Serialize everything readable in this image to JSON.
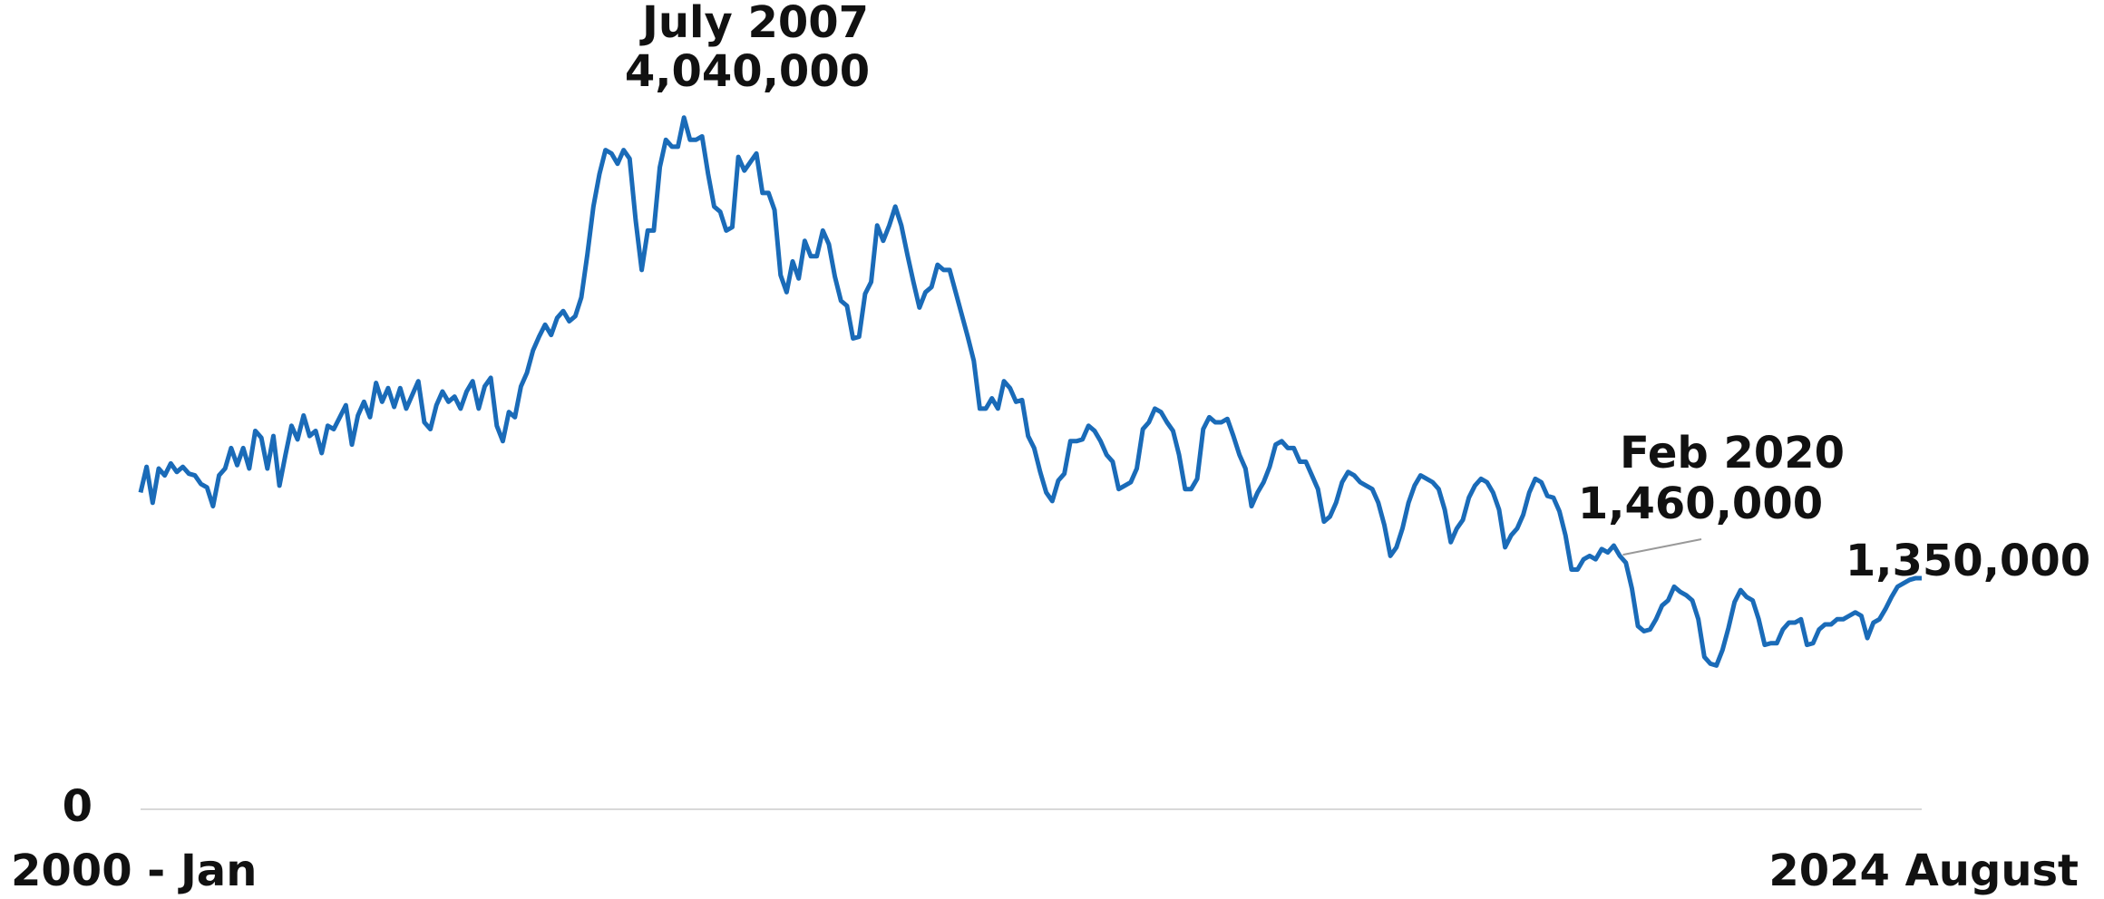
{
  "chart_data": {
    "type": "line",
    "categories": [
      "2000 - Jan",
      null,
      null,
      null,
      null,
      null,
      null,
      null,
      null,
      null,
      null,
      null,
      null,
      null,
      null,
      null,
      null,
      null,
      null,
      null,
      null,
      null,
      null,
      null,
      null,
      null,
      null,
      null,
      null,
      null,
      null,
      null,
      null,
      null,
      null,
      null,
      null,
      null,
      null,
      null,
      null,
      null,
      null,
      null,
      null,
      null,
      null,
      null,
      null,
      null,
      null,
      null,
      null,
      null,
      null,
      null,
      null,
      null,
      null,
      null,
      null,
      null,
      null,
      null,
      null,
      null,
      null,
      null,
      null,
      null,
      null,
      null,
      null,
      null,
      null,
      null,
      null,
      null,
      null,
      null,
      null,
      null,
      null,
      null,
      null,
      null,
      null,
      null,
      null,
      null,
      null,
      null,
      null,
      null,
      null,
      null,
      null,
      null,
      null,
      null,
      null,
      null,
      null,
      null,
      null,
      null,
      null,
      null,
      null,
      null,
      null,
      null,
      null,
      null,
      null,
      null,
      null,
      null,
      null,
      null,
      null,
      null,
      null,
      null,
      null,
      null,
      null,
      null,
      null,
      null,
      null,
      null,
      null,
      null,
      null,
      null,
      null,
      null,
      null,
      null,
      null,
      null,
      null,
      null,
      null,
      null,
      null,
      null,
      null,
      null,
      null,
      null,
      null,
      null,
      null,
      null,
      null,
      null,
      null,
      null,
      null,
      null,
      null,
      null,
      null,
      null,
      null,
      null,
      null,
      null,
      null,
      null,
      null,
      null,
      null,
      null,
      null,
      null,
      null,
      null,
      null,
      null,
      null,
      null,
      null,
      null,
      null,
      null,
      null,
      null,
      null,
      null,
      null,
      null,
      null,
      null,
      null,
      null,
      null,
      null,
      null,
      null,
      null,
      null,
      null,
      null,
      null,
      null,
      null,
      null,
      null,
      null,
      null,
      null,
      null,
      null,
      null,
      null,
      null,
      null,
      null,
      null,
      null,
      null,
      null,
      null,
      null,
      null,
      null,
      null,
      null,
      null,
      null,
      null,
      null,
      null,
      null,
      null,
      null,
      null,
      null,
      null,
      null,
      null,
      null,
      null,
      null,
      null,
      null,
      null,
      null,
      null,
      null,
      null,
      null,
      null,
      null,
      null,
      null,
      null,
      null,
      null,
      null,
      null,
      null,
      null,
      null,
      null,
      null,
      null,
      null,
      null,
      null,
      null,
      null,
      null,
      null,
      null,
      null,
      null,
      null,
      null,
      null,
      null,
      null,
      null,
      null,
      null,
      null,
      null,
      null,
      null,
      null,
      null,
      null,
      "2024 August"
    ],
    "values": [
      1850000,
      2000000,
      1790000,
      1990000,
      1950000,
      2020000,
      1970000,
      2000000,
      1960000,
      1950000,
      1900000,
      1880000,
      1770000,
      1950000,
      1990000,
      2110000,
      2010000,
      2110000,
      1990000,
      2210000,
      2170000,
      1990000,
      2180000,
      1890000,
      2070000,
      2240000,
      2160000,
      2300000,
      2180000,
      2210000,
      2080000,
      2240000,
      2220000,
      2290000,
      2360000,
      2130000,
      2300000,
      2380000,
      2290000,
      2490000,
      2380000,
      2460000,
      2350000,
      2460000,
      2340000,
      2420000,
      2500000,
      2260000,
      2220000,
      2360000,
      2440000,
      2380000,
      2410000,
      2340000,
      2440000,
      2500000,
      2340000,
      2470000,
      2520000,
      2240000,
      2150000,
      2320000,
      2290000,
      2470000,
      2550000,
      2680000,
      2760000,
      2830000,
      2770000,
      2870000,
      2910000,
      2850000,
      2880000,
      2990000,
      3240000,
      3520000,
      3710000,
      3850000,
      3830000,
      3770000,
      3850000,
      3800000,
      3440000,
      3150000,
      3380000,
      3380000,
      3750000,
      3910000,
      3870000,
      3870000,
      4040000,
      3910000,
      3910000,
      3930000,
      3710000,
      3520000,
      3490000,
      3380000,
      3400000,
      3810000,
      3730000,
      3780000,
      3830000,
      3600000,
      3600000,
      3500000,
      3120000,
      3020000,
      3200000,
      3100000,
      3320000,
      3230000,
      3230000,
      3380000,
      3300000,
      3110000,
      2970000,
      2940000,
      2750000,
      2760000,
      3010000,
      3080000,
      3410000,
      3320000,
      3410000,
      3520000,
      3410000,
      3240000,
      3080000,
      2930000,
      3020000,
      3050000,
      3180000,
      3150000,
      3150000,
      3020000,
      2890000,
      2760000,
      2620000,
      2340000,
      2340000,
      2400000,
      2340000,
      2500000,
      2460000,
      2380000,
      2390000,
      2180000,
      2110000,
      1970000,
      1850000,
      1800000,
      1920000,
      1960000,
      2150000,
      2150000,
      2160000,
      2240000,
      2210000,
      2150000,
      2070000,
      2030000,
      1870000,
      1890000,
      1910000,
      1990000,
      2220000,
      2260000,
      2340000,
      2320000,
      2260000,
      2210000,
      2070000,
      1870000,
      1870000,
      1930000,
      2220000,
      2290000,
      2260000,
      2260000,
      2280000,
      2180000,
      2070000,
      1990000,
      1770000,
      1850000,
      1910000,
      2000000,
      2130000,
      2150000,
      2110000,
      2110000,
      2030000,
      2030000,
      1950000,
      1870000,
      1680000,
      1710000,
      1790000,
      1910000,
      1970000,
      1950000,
      1910000,
      1890000,
      1870000,
      1790000,
      1660000,
      1480000,
      1530000,
      1640000,
      1790000,
      1890000,
      1950000,
      1930000,
      1910000,
      1870000,
      1750000,
      1560000,
      1640000,
      1690000,
      1820000,
      1890000,
      1930000,
      1910000,
      1850000,
      1750000,
      1530000,
      1600000,
      1640000,
      1720000,
      1850000,
      1930000,
      1910000,
      1830000,
      1820000,
      1740000,
      1600000,
      1400000,
      1400000,
      1460000,
      1480000,
      1460000,
      1520000,
      1500000,
      1540000,
      1480000,
      1440000,
      1290000,
      1070000,
      1040000,
      1050000,
      1110000,
      1190000,
      1220000,
      1300000,
      1270000,
      1250000,
      1220000,
      1110000,
      890000,
      850000,
      840000,
      930000,
      1060000,
      1210000,
      1280000,
      1240000,
      1220000,
      1110000,
      960000,
      970000,
      970000,
      1050000,
      1090000,
      1090000,
      1110000,
      960000,
      970000,
      1050000,
      1080000,
      1080000,
      1110000,
      1110000,
      1130000,
      1150000,
      1130000,
      1000000,
      1090000,
      1110000,
      1170000,
      1240000,
      1300000,
      1320000,
      1340000,
      1350000,
      1350000
    ],
    "color": "#1a6bb8",
    "ylim": [
      0,
      4700000
    ],
    "yticks": [
      0
    ],
    "grid": true,
    "annotations": [
      {
        "text": "July 2007",
        "label": "4,040,000"
      },
      {
        "text": "Feb 2020",
        "label": "1,460,000"
      },
      {
        "label": "1,350,000"
      }
    ]
  }
}
